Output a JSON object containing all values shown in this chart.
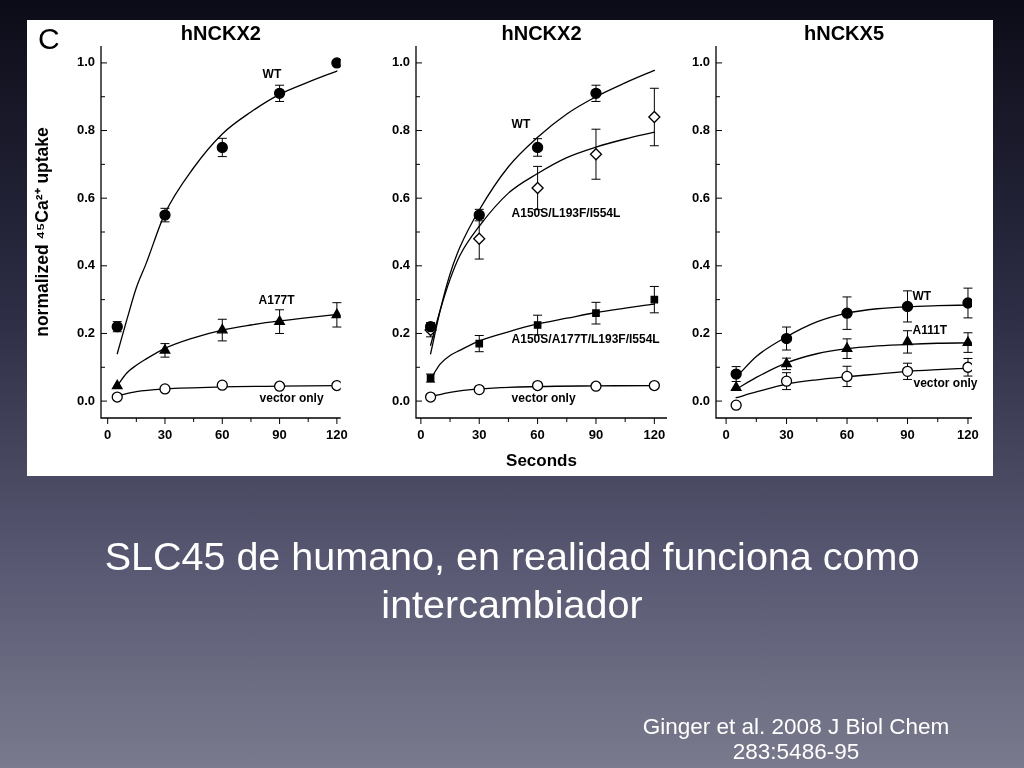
{
  "chart_data": [
    {
      "type": "scatter",
      "title": "hNCKX2",
      "ylabel": "normalized ⁴⁵Ca²⁺ uptake",
      "annotations": [
        "C"
      ],
      "xlim": [
        -3.5,
        122
      ],
      "xticks": [
        0,
        {
          "value": 15,
          "label": null
        },
        30,
        {
          "value": 45,
          "label": null
        },
        60,
        {
          "value": 75,
          "label": null
        },
        90,
        {
          "value": 105,
          "label": null
        },
        120
      ],
      "ylim": [
        -0.05,
        1.05
      ],
      "yticks": [
        {
          "value": 0,
          "label": "0.0"
        },
        {
          "value": 0.1,
          "label": null
        },
        0.2,
        {
          "value": 0.3,
          "label": null
        },
        0.4,
        {
          "value": 0.5,
          "label": null
        },
        0.6,
        {
          "value": 0.7,
          "label": null
        },
        0.8,
        {
          "value": 0.9,
          "label": null
        },
        {
          "value": 1,
          "label": "1.0"
        }
      ],
      "series": [
        {
          "name": "WT",
          "type": "scatter",
          "marker": "circle",
          "color": "#000000",
          "x": [
            5,
            30,
            60,
            90,
            120
          ],
          "values": [
            0.22,
            0.55,
            0.75,
            0.91,
            1.0
          ],
          "errors": [
            0.015,
            0.02,
            0.027,
            0.024,
            null
          ]
        },
        {
          "name": "A177T",
          "type": "scatter",
          "marker": "triangle",
          "color": "#000000",
          "x": [
            5,
            30,
            60,
            90,
            120
          ],
          "values": [
            0.045,
            0.15,
            0.21,
            0.235,
            0.255
          ],
          "errors": [
            null,
            0.02,
            0.032,
            0.035,
            0.036
          ]
        },
        {
          "name": "vector only",
          "type": "scatter",
          "marker": "circle",
          "color": "#ffffff",
          "x": [
            5,
            30,
            60,
            90,
            120
          ],
          "values": [
            0.012,
            0.036,
            0.047,
            0.044,
            0.046
          ]
        },
        {
          "type": "line",
          "marker": "none",
          "color": "#000000",
          "x": [
            5,
            10,
            15,
            20,
            30,
            45,
            60,
            75,
            90,
            105,
            120
          ],
          "values": [
            0.14,
            0.24,
            0.335,
            0.405,
            0.555,
            0.69,
            0.79,
            0.855,
            0.907,
            0.943,
            0.976
          ]
        },
        {
          "type": "line",
          "marker": "none",
          "color": "#000000",
          "x": [
            5,
            10,
            15,
            20,
            30,
            45,
            60,
            75,
            90,
            105,
            120
          ],
          "values": [
            0.045,
            0.083,
            0.106,
            0.124,
            0.156,
            0.187,
            0.21,
            0.225,
            0.237,
            0.247,
            0.256
          ]
        },
        {
          "type": "line",
          "marker": "none",
          "color": "#000000",
          "x": [
            5,
            15,
            30,
            60,
            90,
            120
          ],
          "values": [
            0.015,
            0.028,
            0.036,
            0.042,
            0.044,
            0.046
          ]
        }
      ]
    },
    {
      "type": "scatter",
      "title": "hNCKX2",
      "xlabel": "Seconds",
      "xlim": [
        -2.5,
        126.5
      ],
      "xticks": [
        0,
        {
          "value": 15,
          "label": null
        },
        30,
        {
          "value": 45,
          "label": null
        },
        60,
        {
          "value": 75,
          "label": null
        },
        90,
        {
          "value": 105,
          "label": null
        },
        120
      ],
      "ylim": [
        -0.05,
        1.05
      ],
      "yticks": [
        {
          "value": 0,
          "label": "0.0"
        },
        {
          "value": 0.1,
          "label": null
        },
        0.2,
        {
          "value": 0.3,
          "label": null
        },
        0.4,
        {
          "value": 0.5,
          "label": null
        },
        0.6,
        {
          "value": 0.7,
          "label": null
        },
        0.8,
        {
          "value": 0.9,
          "label": null
        },
        {
          "value": 1,
          "label": "1.0"
        }
      ],
      "series": [
        {
          "name": "WT",
          "type": "scatter",
          "marker": "circle",
          "color": "#000000",
          "x": [
            5,
            30,
            60,
            90
          ],
          "values": [
            0.22,
            0.55,
            0.75,
            0.91
          ],
          "errors": [
            0.012,
            0.017,
            0.026,
            0.024
          ]
        },
        {
          "name": "A150S/L193F/I554L",
          "type": "scatter",
          "marker": "diamond",
          "color": "#ffffff",
          "x": [
            5,
            30,
            60,
            90,
            120
          ],
          "values": [
            0.21,
            0.48,
            0.63,
            0.73,
            0.84
          ],
          "errors": [
            0.02,
            0.06,
            0.064,
            0.074,
            0.085
          ]
        },
        {
          "name": "A150S/A177T/L193F/I554L",
          "type": "scatter",
          "marker": "square",
          "color": "#000000",
          "x": [
            5,
            30,
            60,
            90,
            120
          ],
          "values": [
            0.068,
            0.17,
            0.225,
            0.26,
            0.3
          ],
          "errors": [
            0.012,
            0.024,
            0.029,
            0.032,
            0.039
          ]
        },
        {
          "name": "vector only",
          "type": "scatter",
          "marker": "circle",
          "color": "#ffffff",
          "x": [
            5,
            30,
            60,
            90,
            120
          ],
          "values": [
            0.012,
            0.034,
            0.046,
            0.044,
            0.046
          ]
        },
        {
          "type": "line",
          "marker": "none",
          "color": "#000000",
          "x": [
            5,
            10,
            15,
            20,
            30,
            45,
            60,
            75,
            90,
            105,
            120
          ],
          "values": [
            0.14,
            0.27,
            0.376,
            0.454,
            0.565,
            0.693,
            0.78,
            0.849,
            0.9,
            0.941,
            0.978
          ]
        },
        {
          "type": "line",
          "marker": "none",
          "color": "#000000",
          "x": [
            5,
            10,
            15,
            20,
            30,
            45,
            60,
            75,
            90,
            105,
            120
          ],
          "values": [
            0.165,
            0.27,
            0.36,
            0.43,
            0.517,
            0.615,
            0.673,
            0.72,
            0.751,
            0.775,
            0.795
          ]
        },
        {
          "type": "line",
          "marker": "none",
          "color": "#000000",
          "x": [
            5,
            10,
            15,
            20,
            30,
            45,
            60,
            75,
            90,
            105,
            120
          ],
          "values": [
            0.065,
            0.11,
            0.135,
            0.15,
            0.178,
            0.205,
            0.228,
            0.245,
            0.262,
            0.275,
            0.287
          ]
        },
        {
          "type": "line",
          "marker": "none",
          "color": "#000000",
          "x": [
            5,
            15,
            30,
            60,
            90,
            120
          ],
          "values": [
            0.013,
            0.026,
            0.036,
            0.043,
            0.045,
            0.046
          ]
        }
      ]
    },
    {
      "type": "scatter",
      "title": "hNCKX5",
      "xlim": [
        -5,
        122
      ],
      "xticks": [
        0,
        {
          "value": 15,
          "label": null
        },
        30,
        {
          "value": 45,
          "label": null
        },
        60,
        {
          "value": 75,
          "label": null
        },
        90,
        {
          "value": 105,
          "label": null
        },
        120
      ],
      "ylim": [
        -0.05,
        1.05
      ],
      "yticks": [
        {
          "value": 0,
          "label": "0.0"
        },
        {
          "value": 0.1,
          "label": null
        },
        0.2,
        {
          "value": 0.3,
          "label": null
        },
        0.4,
        {
          "value": 0.5,
          "label": null
        },
        0.6,
        {
          "value": 0.7,
          "label": null
        },
        0.8,
        {
          "value": 0.9,
          "label": null
        },
        {
          "value": 1,
          "label": "1.0"
        }
      ],
      "series": [
        {
          "name": "WT",
          "type": "scatter",
          "marker": "circle",
          "color": "#000000",
          "x": [
            5,
            30,
            60,
            90,
            120
          ],
          "values": [
            0.08,
            0.185,
            0.26,
            0.28,
            0.29
          ],
          "errors": [
            0.022,
            0.034,
            0.048,
            0.046,
            0.044
          ]
        },
        {
          "name": "A111T",
          "type": "scatter",
          "marker": "triangle",
          "color": "#000000",
          "x": [
            5,
            30,
            60,
            90,
            120
          ],
          "values": [
            0.04,
            0.11,
            0.155,
            0.175,
            0.173
          ],
          "errors": [
            null,
            0.017,
            0.029,
            0.033,
            0.029
          ]
        },
        {
          "name": "vector only",
          "type": "scatter",
          "marker": "circle",
          "color": "#ffffff",
          "x": [
            5,
            30,
            60,
            90,
            120
          ],
          "values": [
            -0.012,
            0.059,
            0.073,
            0.088,
            0.1
          ],
          "errors": [
            null,
            0.025,
            0.03,
            0.024,
            0.026
          ]
        },
        {
          "type": "line",
          "marker": "none",
          "color": "#000000",
          "x": [
            5,
            15,
            30,
            45,
            60,
            75,
            90,
            105,
            120
          ],
          "values": [
            0.07,
            0.132,
            0.19,
            0.234,
            0.26,
            0.273,
            0.279,
            0.282,
            0.284
          ]
        },
        {
          "type": "line",
          "marker": "none",
          "color": "#000000",
          "x": [
            5,
            15,
            30,
            45,
            60,
            75,
            90,
            105,
            120
          ],
          "values": [
            0.035,
            0.07,
            0.113,
            0.14,
            0.155,
            0.163,
            0.168,
            0.171,
            0.172
          ]
        },
        {
          "type": "line",
          "marker": "none",
          "color": "#000000",
          "x": [
            5,
            15,
            30,
            45,
            60,
            75,
            90,
            105,
            120
          ],
          "values": [
            0.01,
            0.027,
            0.05,
            0.063,
            0.072,
            0.08,
            0.088,
            0.093,
            0.097
          ]
        }
      ]
    },
    {
      "type": "other",
      "title": "SLC45 de humano, en realidad funciona como intercambiador",
      "annotations": [
        "Ginger et al. 2008 J Biol Chem 283:5486-95"
      ]
    }
  ]
}
